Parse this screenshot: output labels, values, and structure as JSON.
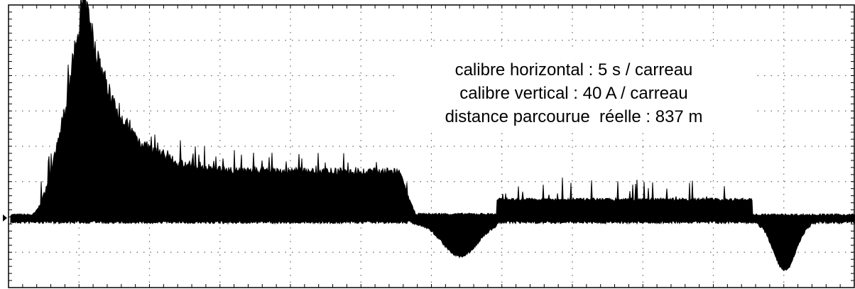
{
  "annotation": {
    "lines": [
      "calibre horizontal : 5 s / carreau",
      "calibre vertical : 40 A / carreau",
      "distance parcourue  réelle : 837 m"
    ]
  }
}
